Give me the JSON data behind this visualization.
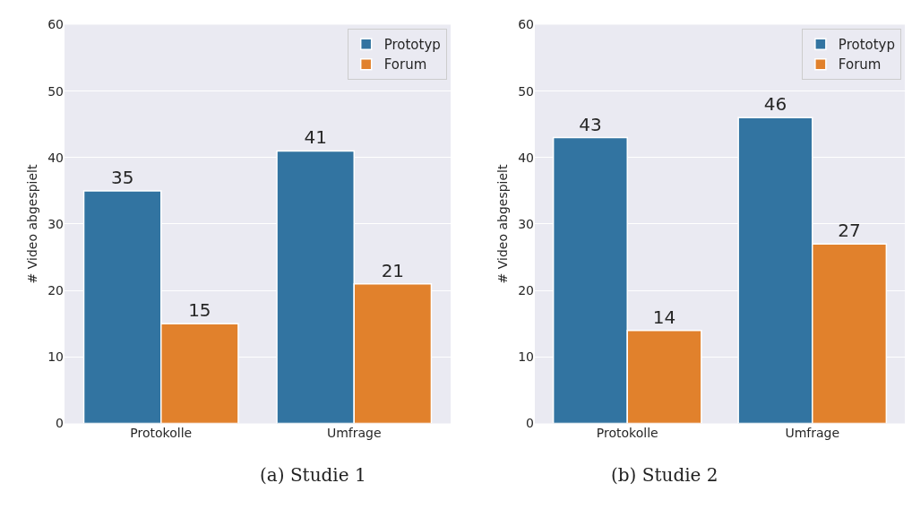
{
  "chart_data": [
    {
      "type": "bar",
      "categories": [
        "Protokolle",
        "Umfrage"
      ],
      "ylabel": "# Video abgespielt",
      "ylim": [
        0,
        60
      ],
      "yticks": [
        0,
        10,
        20,
        30,
        40,
        50,
        60
      ],
      "grid": "y",
      "legend": "top right",
      "data_labels": true,
      "annotations": [
        "(a) Studie 1"
      ],
      "series": [
        {
          "name": "Prototyp",
          "color": "#3274a1",
          "values": [
            35,
            41
          ]
        },
        {
          "name": "Forum",
          "color": "#e1812c",
          "values": [
            15,
            21
          ]
        }
      ]
    },
    {
      "type": "bar",
      "categories": [
        "Protokolle",
        "Umfrage"
      ],
      "ylabel": "# Video abgespielt",
      "ylim": [
        0,
        60
      ],
      "yticks": [
        0,
        10,
        20,
        30,
        40,
        50,
        60
      ],
      "grid": "y",
      "legend": "top right",
      "data_labels": true,
      "annotations": [
        "(b) Studie 2"
      ],
      "series": [
        {
          "name": "Prototyp",
          "color": "#3274a1",
          "values": [
            43,
            46
          ]
        },
        {
          "name": "Forum",
          "color": "#e1812c",
          "values": [
            14,
            27
          ]
        }
      ]
    }
  ]
}
